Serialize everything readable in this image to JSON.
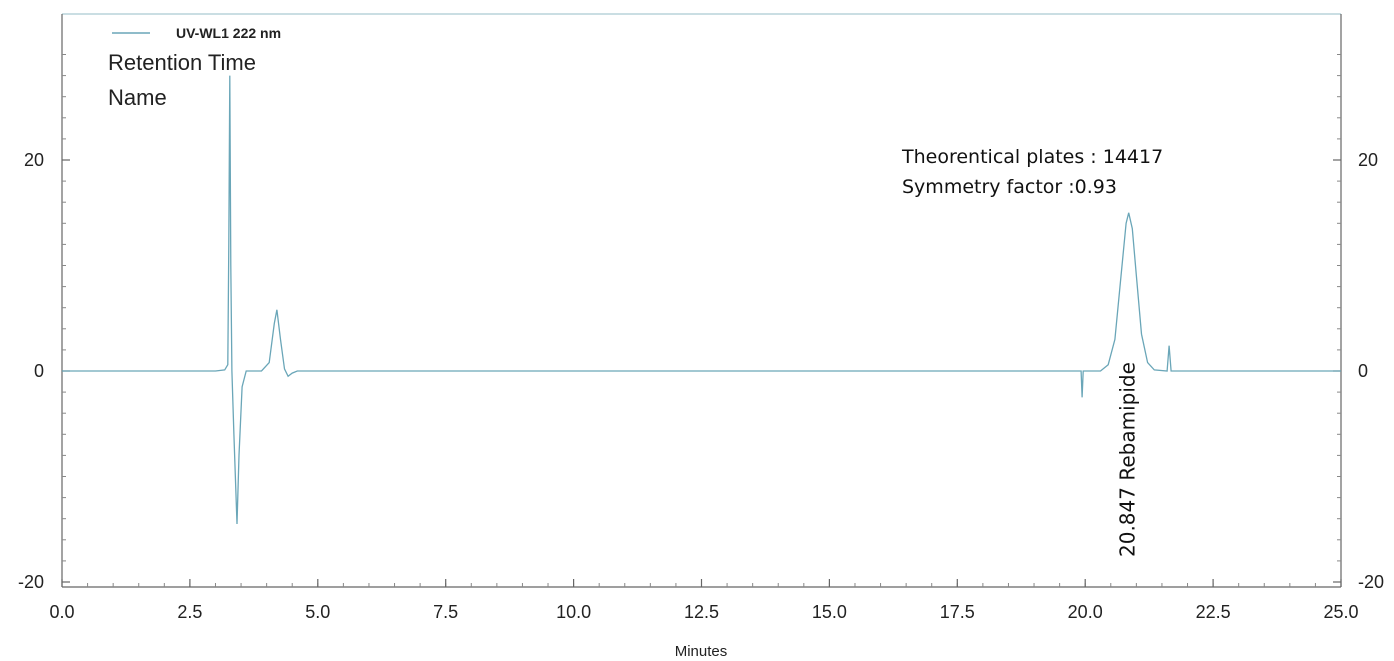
{
  "chart_data": {
    "type": "line",
    "xlabel": "Minutes",
    "ylabel": "",
    "xlim": [
      0,
      25
    ],
    "ylim": [
      -20,
      30
    ],
    "x_ticks": [
      "0.0",
      "2.5",
      "5.0",
      "7.5",
      "10.0",
      "12.5",
      "15.0",
      "17.5",
      "20.0",
      "22.5",
      "25.0"
    ],
    "y_ticks_left": [
      "20",
      "0",
      "-20"
    ],
    "y_ticks_right": [
      "20",
      "0",
      "-20"
    ],
    "grid": false,
    "legend_position": "top-left",
    "series": [
      {
        "name": "UV-WL1  222 nm",
        "color": "#6aa6b8",
        "points": [
          [
            0.0,
            0.0
          ],
          [
            3.0,
            0.0
          ],
          [
            3.18,
            0.1
          ],
          [
            3.24,
            0.6
          ],
          [
            3.26,
            12.0
          ],
          [
            3.28,
            28.0
          ],
          [
            3.3,
            10.0
          ],
          [
            3.32,
            0.0
          ],
          [
            3.36,
            -6.0
          ],
          [
            3.42,
            -14.5
          ],
          [
            3.46,
            -8.0
          ],
          [
            3.52,
            -1.5
          ],
          [
            3.6,
            0.0
          ],
          [
            3.9,
            0.0
          ],
          [
            4.05,
            0.8
          ],
          [
            4.15,
            4.5
          ],
          [
            4.2,
            5.8
          ],
          [
            4.27,
            3.0
          ],
          [
            4.35,
            0.2
          ],
          [
            4.42,
            -0.5
          ],
          [
            4.5,
            -0.2
          ],
          [
            4.6,
            0.0
          ],
          [
            19.92,
            0.0
          ],
          [
            19.94,
            -2.5
          ],
          [
            19.96,
            0.0
          ],
          [
            20.3,
            0.0
          ],
          [
            20.45,
            0.6
          ],
          [
            20.58,
            3.0
          ],
          [
            20.7,
            9.0
          ],
          [
            20.8,
            14.0
          ],
          [
            20.85,
            15.0
          ],
          [
            20.92,
            13.5
          ],
          [
            21.0,
            9.0
          ],
          [
            21.1,
            3.5
          ],
          [
            21.22,
            0.8
          ],
          [
            21.35,
            0.1
          ],
          [
            21.6,
            0.0
          ],
          [
            21.64,
            2.4
          ],
          [
            21.68,
            0.0
          ],
          [
            25.0,
            0.0
          ]
        ]
      }
    ],
    "annotations": {
      "header_lines": [
        "Retention Time",
        "Name"
      ],
      "plate_info": [
        "Theorentical plates : 14417",
        "Symmetry factor :0.93"
      ],
      "peak_label": "20.847  Rebamipide",
      "peak_retention_time": 20.847,
      "peak_name": "Rebamipide"
    }
  }
}
